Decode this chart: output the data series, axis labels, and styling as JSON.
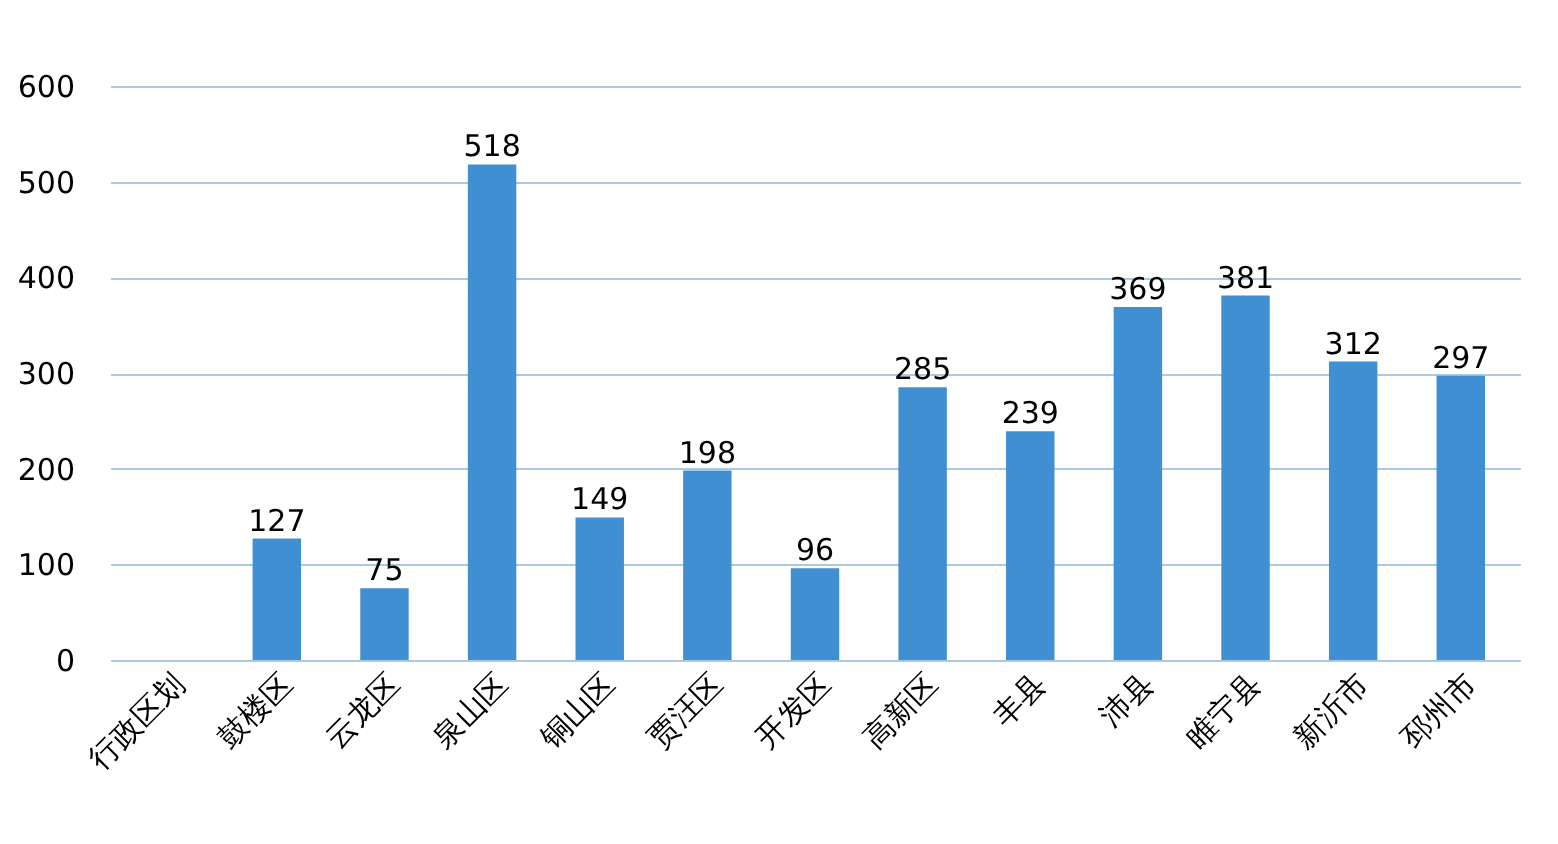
{
  "chart_data": {
    "type": "bar",
    "categories": [
      "行政区划",
      "鼓楼区",
      "云龙区",
      "泉山区",
      "铜山区",
      "贾汪区",
      "开发区",
      "高新区",
      "丰县",
      "沛县",
      "睢宁县",
      "新沂市",
      "邳州市"
    ],
    "values": [
      null,
      127,
      75,
      518,
      149,
      198,
      96,
      285,
      239,
      369,
      381,
      312,
      297
    ],
    "color": "#3f8fd2",
    "ylim": [
      0,
      600
    ],
    "yticks": [
      0,
      100,
      200,
      300,
      400,
      500,
      600
    ],
    "grid": "y",
    "data_labels": true
  }
}
